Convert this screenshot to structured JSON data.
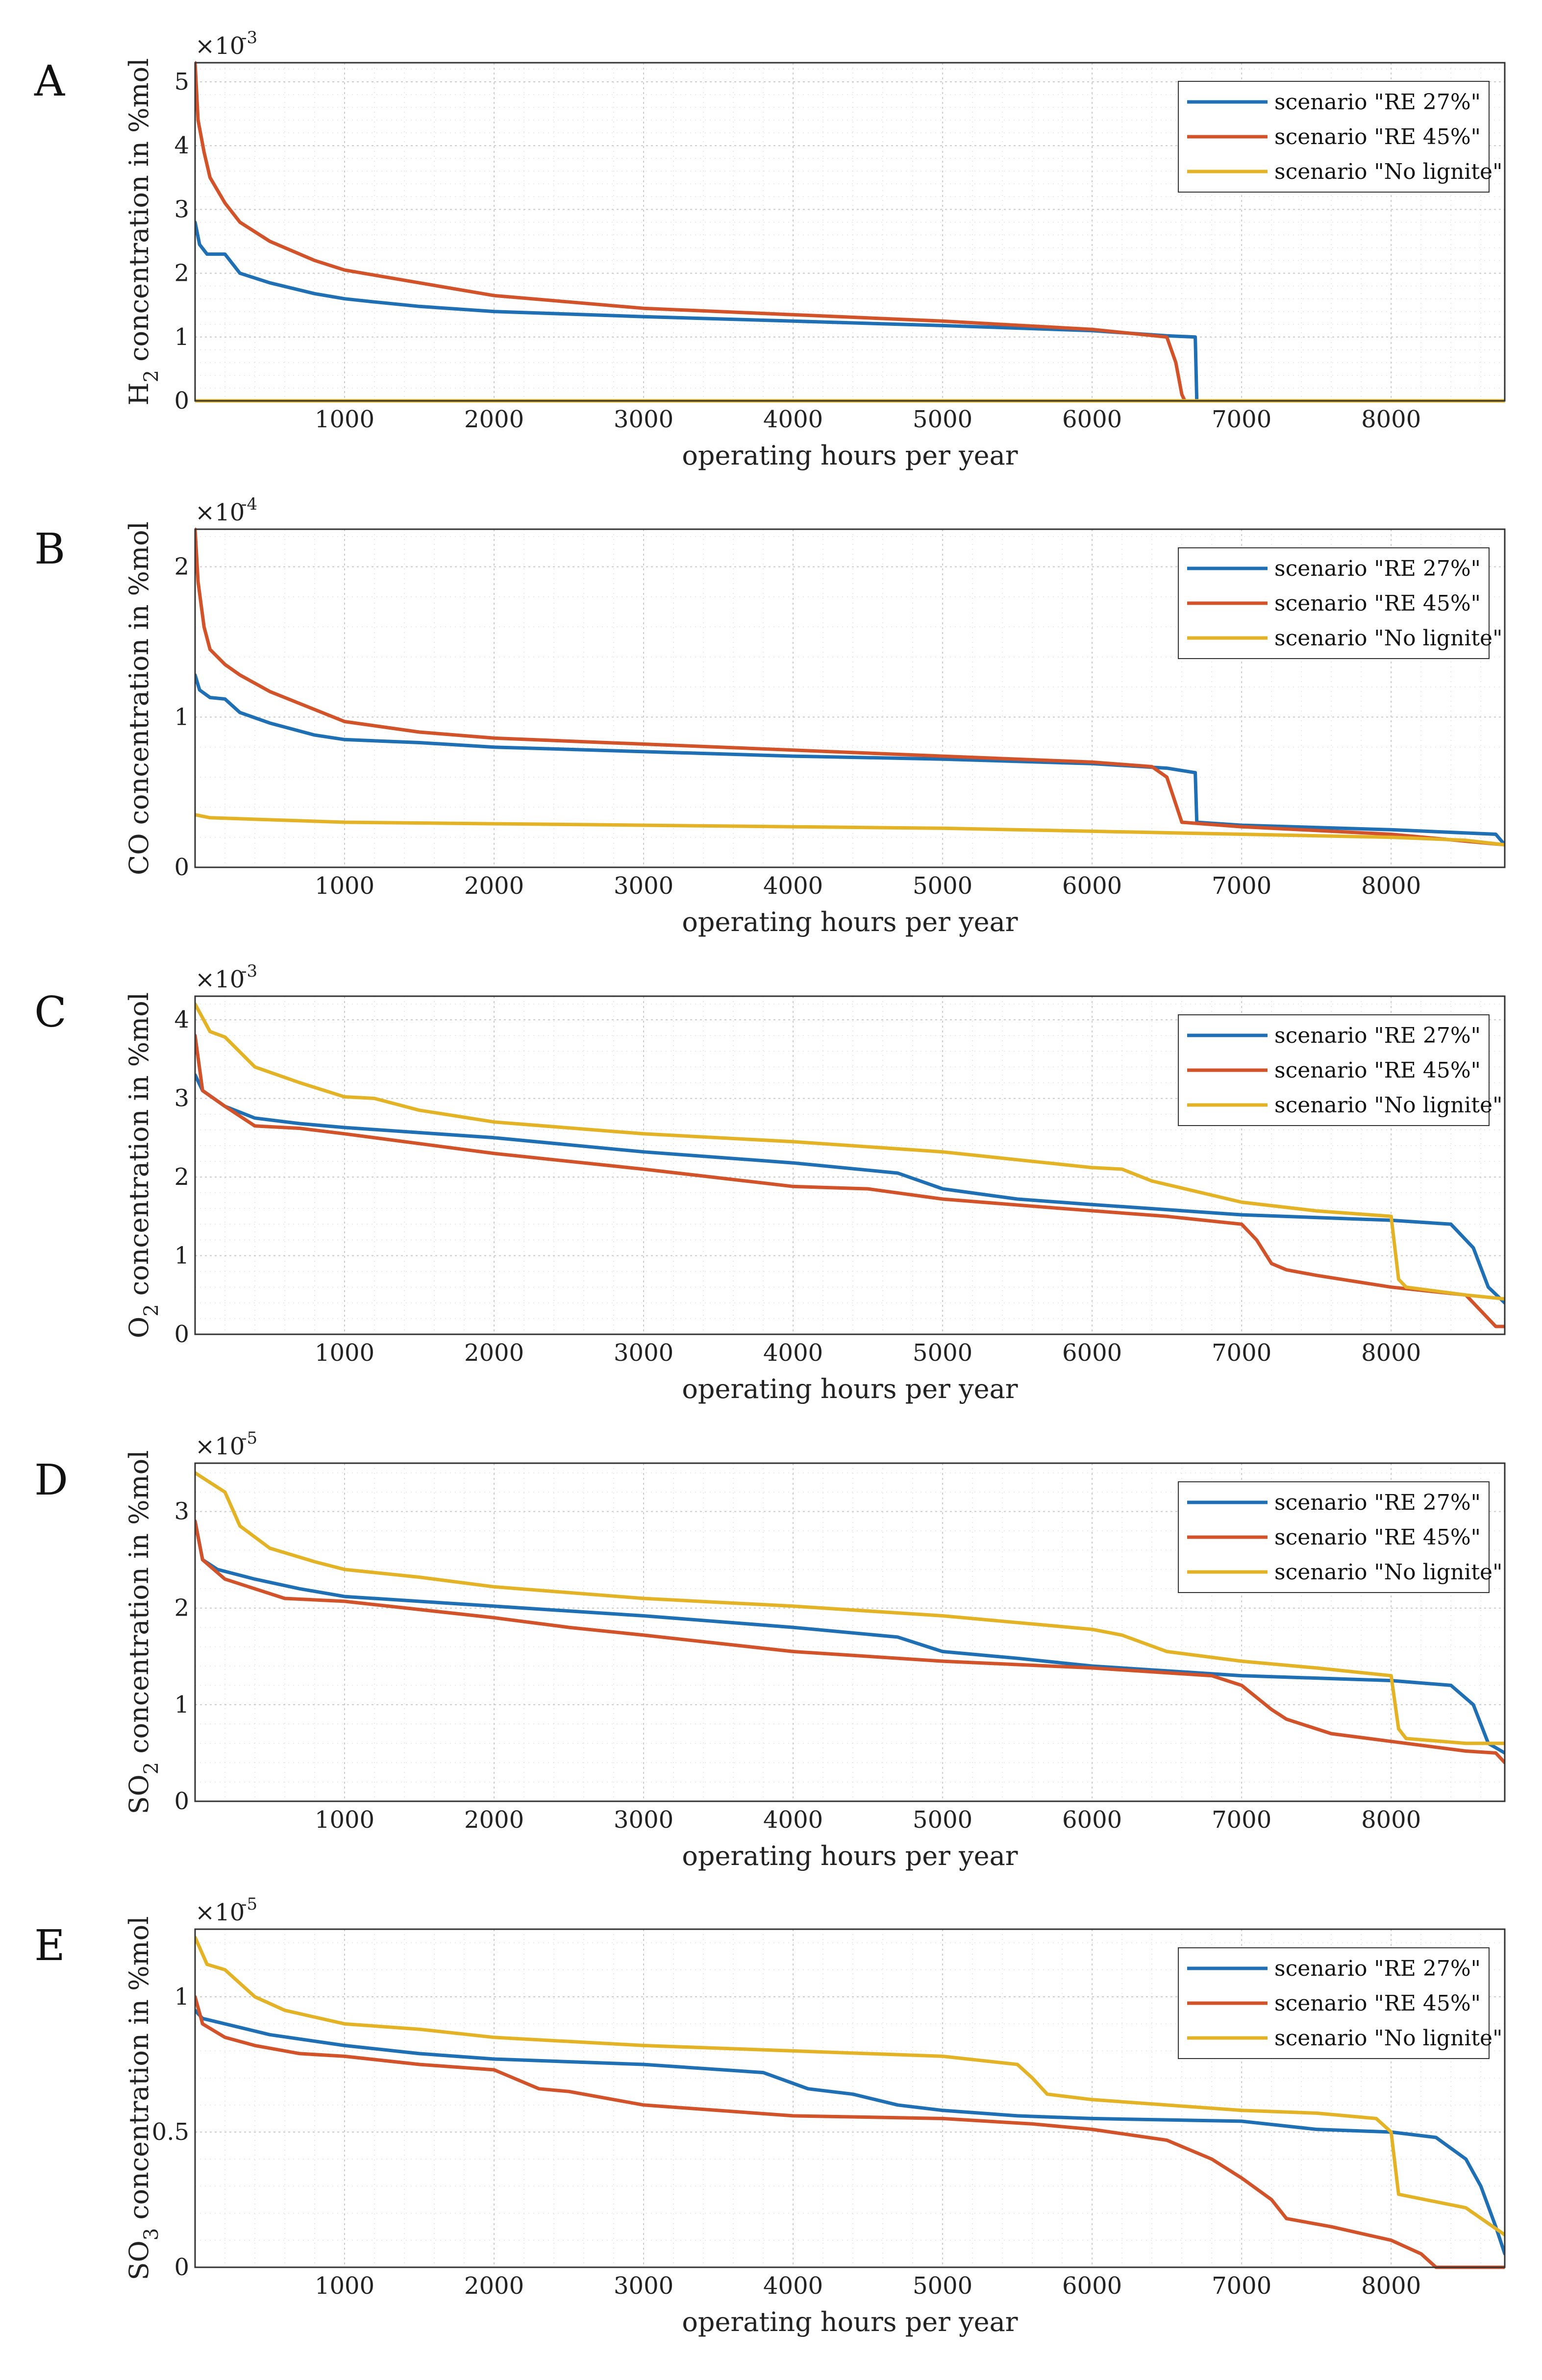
{
  "figure": {
    "x_axis_title": "operating hours per year",
    "legend_entries": [
      "scenario \"RE 27%\"",
      "scenario \"RE 45%\"",
      "scenario \"No lignite\""
    ],
    "colors": [
      "#1f6fb4",
      "#d2532a",
      "#e3b325"
    ]
  },
  "chart_data": [
    {
      "type": "line",
      "panel": "A",
      "ylabel_main": "H",
      "ylabel_sub": "2",
      "ylabel_rest": " concentration in %mol",
      "exponent_base": "×10",
      "exponent_power": "-3",
      "xlim": [
        0,
        8760
      ],
      "ylim": [
        0,
        5.3
      ],
      "xticks": [
        1000,
        2000,
        3000,
        4000,
        5000,
        6000,
        7000,
        8000
      ],
      "yticks": [
        0,
        1,
        2,
        3,
        4,
        5
      ],
      "ytick_labels": [
        "0",
        "1",
        "2",
        "3",
        "4",
        "5"
      ],
      "legend": "top-right",
      "series": [
        {
          "name": "scenario \"RE 27%\"",
          "x": [
            0,
            30,
            80,
            200,
            300,
            500,
            800,
            1000,
            1200,
            1500,
            2000,
            3000,
            4000,
            5000,
            6000,
            6500,
            6690,
            6700,
            8760
          ],
          "y": [
            2.8,
            2.45,
            2.3,
            2.3,
            2.0,
            1.85,
            1.68,
            1.6,
            1.55,
            1.48,
            1.4,
            1.32,
            1.25,
            1.18,
            1.1,
            1.02,
            1.0,
            0,
            0
          ]
        },
        {
          "name": "scenario \"RE 45%\"",
          "x": [
            0,
            20,
            60,
            100,
            200,
            300,
            500,
            800,
            1000,
            1500,
            2000,
            2500,
            3000,
            4000,
            5000,
            6000,
            6500,
            6560,
            6600,
            6620,
            8760
          ],
          "y": [
            5.3,
            4.4,
            3.9,
            3.5,
            3.1,
            2.8,
            2.5,
            2.2,
            2.05,
            1.85,
            1.65,
            1.55,
            1.45,
            1.35,
            1.25,
            1.12,
            1.0,
            0.6,
            0.1,
            0,
            0
          ]
        },
        {
          "name": "scenario \"No lignite\"",
          "x": [
            0,
            8760
          ],
          "y": [
            0,
            0
          ]
        }
      ]
    },
    {
      "type": "line",
      "panel": "B",
      "ylabel_main": "CO concentration in %mol",
      "ylabel_sub": "",
      "ylabel_rest": "",
      "exponent_base": "×10",
      "exponent_power": "-4",
      "xlim": [
        0,
        8760
      ],
      "ylim": [
        0,
        2.25
      ],
      "xticks": [
        1000,
        2000,
        3000,
        4000,
        5000,
        6000,
        7000,
        8000
      ],
      "yticks": [
        0,
        1,
        2
      ],
      "ytick_labels": [
        "0",
        "1",
        "2"
      ],
      "legend": "top-right",
      "series": [
        {
          "name": "scenario \"RE 27%\"",
          "x": [
            0,
            30,
            100,
            200,
            300,
            500,
            800,
            1000,
            1500,
            2000,
            3000,
            4000,
            5000,
            6000,
            6500,
            6690,
            6700,
            7000,
            8000,
            8700,
            8760
          ],
          "y": [
            1.28,
            1.18,
            1.13,
            1.12,
            1.03,
            0.96,
            0.88,
            0.85,
            0.83,
            0.8,
            0.77,
            0.74,
            0.72,
            0.69,
            0.66,
            0.63,
            0.3,
            0.28,
            0.25,
            0.22,
            0.15
          ]
        },
        {
          "name": "scenario \"RE 45%\"",
          "x": [
            0,
            20,
            60,
            100,
            200,
            300,
            500,
            800,
            1000,
            1500,
            2000,
            3000,
            4000,
            5000,
            6000,
            6400,
            6500,
            6550,
            6600,
            7000,
            8000,
            8760
          ],
          "y": [
            2.25,
            1.9,
            1.6,
            1.45,
            1.35,
            1.28,
            1.17,
            1.05,
            0.97,
            0.9,
            0.86,
            0.82,
            0.78,
            0.74,
            0.7,
            0.67,
            0.6,
            0.45,
            0.3,
            0.27,
            0.22,
            0.15
          ]
        },
        {
          "name": "scenario \"No lignite\"",
          "x": [
            0,
            100,
            1000,
            2000,
            3000,
            4000,
            5000,
            6000,
            7000,
            8000,
            8500,
            8760
          ],
          "y": [
            0.35,
            0.33,
            0.3,
            0.29,
            0.28,
            0.27,
            0.26,
            0.24,
            0.22,
            0.2,
            0.18,
            0.15
          ]
        }
      ]
    },
    {
      "type": "line",
      "panel": "C",
      "ylabel_main": "O",
      "ylabel_sub": "2",
      "ylabel_rest": " concentration in %mol",
      "exponent_base": "×10",
      "exponent_power": "-3",
      "xlim": [
        0,
        8760
      ],
      "ylim": [
        0,
        4.3
      ],
      "xticks": [
        1000,
        2000,
        3000,
        4000,
        5000,
        6000,
        7000,
        8000
      ],
      "yticks": [
        0,
        1,
        2,
        3,
        4
      ],
      "ytick_labels": [
        "0",
        "1",
        "2",
        "3",
        "4"
      ],
      "legend": "top-right",
      "series": [
        {
          "name": "scenario \"RE 27%\"",
          "x": [
            0,
            50,
            200,
            400,
            700,
            1000,
            2000,
            3000,
            4000,
            4700,
            5000,
            5500,
            6000,
            7000,
            8000,
            8400,
            8550,
            8650,
            8760
          ],
          "y": [
            3.3,
            3.1,
            2.9,
            2.75,
            2.68,
            2.63,
            2.5,
            2.32,
            2.18,
            2.05,
            1.85,
            1.72,
            1.65,
            1.52,
            1.45,
            1.4,
            1.1,
            0.6,
            0.4
          ]
        },
        {
          "name": "scenario \"RE 45%\"",
          "x": [
            0,
            50,
            200,
            400,
            700,
            1000,
            2000,
            3000,
            4000,
            4500,
            5000,
            5800,
            6500,
            7000,
            7100,
            7200,
            7300,
            7500,
            8000,
            8500,
            8700,
            8760
          ],
          "y": [
            3.8,
            3.1,
            2.9,
            2.65,
            2.62,
            2.55,
            2.3,
            2.1,
            1.88,
            1.85,
            1.72,
            1.6,
            1.5,
            1.4,
            1.2,
            0.9,
            0.82,
            0.75,
            0.6,
            0.5,
            0.1,
            0.1
          ]
        },
        {
          "name": "scenario \"No lignite\"",
          "x": [
            0,
            100,
            200,
            400,
            700,
            1000,
            1200,
            1500,
            2000,
            3000,
            4000,
            5000,
            5500,
            6000,
            6200,
            6400,
            7000,
            7500,
            8000,
            8050,
            8100,
            8500,
            8760
          ],
          "y": [
            4.2,
            3.85,
            3.78,
            3.4,
            3.2,
            3.02,
            3.0,
            2.85,
            2.7,
            2.55,
            2.45,
            2.32,
            2.22,
            2.12,
            2.1,
            1.95,
            1.68,
            1.57,
            1.5,
            0.7,
            0.6,
            0.5,
            0.45
          ]
        }
      ]
    },
    {
      "type": "line",
      "panel": "D",
      "ylabel_main": "SO",
      "ylabel_sub": "2",
      "ylabel_rest": " concentration in %mol",
      "exponent_base": "×10",
      "exponent_power": "-5",
      "xlim": [
        0,
        8760
      ],
      "ylim": [
        0,
        3.5
      ],
      "xticks": [
        1000,
        2000,
        3000,
        4000,
        5000,
        6000,
        7000,
        8000
      ],
      "yticks": [
        0,
        1,
        2,
        3
      ],
      "ytick_labels": [
        "0",
        "1",
        "2",
        "3"
      ],
      "legend": "top-right",
      "series": [
        {
          "name": "scenario \"RE 27%\"",
          "x": [
            0,
            50,
            150,
            400,
            700,
            1000,
            2000,
            3000,
            4000,
            4700,
            5000,
            5500,
            6000,
            7000,
            8000,
            8400,
            8550,
            8650,
            8760
          ],
          "y": [
            2.9,
            2.5,
            2.4,
            2.3,
            2.2,
            2.12,
            2.02,
            1.92,
            1.8,
            1.7,
            1.55,
            1.48,
            1.4,
            1.3,
            1.25,
            1.2,
            1.0,
            0.6,
            0.5
          ]
        },
        {
          "name": "scenario \"RE 45%\"",
          "x": [
            0,
            50,
            200,
            400,
            600,
            1000,
            2000,
            2500,
            3000,
            4000,
            5000,
            6000,
            6800,
            7000,
            7200,
            7300,
            7600,
            8000,
            8500,
            8700,
            8760
          ],
          "y": [
            2.9,
            2.5,
            2.3,
            2.2,
            2.1,
            2.07,
            1.9,
            1.8,
            1.72,
            1.55,
            1.45,
            1.38,
            1.3,
            1.2,
            0.95,
            0.85,
            0.7,
            0.62,
            0.52,
            0.5,
            0.4
          ]
        },
        {
          "name": "scenario \"No lignite\"",
          "x": [
            0,
            100,
            200,
            300,
            500,
            800,
            1000,
            1500,
            2000,
            3000,
            4000,
            5000,
            5500,
            6000,
            6200,
            6500,
            7000,
            7500,
            8000,
            8050,
            8100,
            8500,
            8760
          ],
          "y": [
            3.4,
            3.3,
            3.2,
            2.85,
            2.62,
            2.48,
            2.4,
            2.32,
            2.22,
            2.1,
            2.02,
            1.92,
            1.85,
            1.78,
            1.72,
            1.55,
            1.45,
            1.38,
            1.3,
            0.75,
            0.65,
            0.6,
            0.6
          ]
        }
      ]
    },
    {
      "type": "line",
      "panel": "E",
      "ylabel_main": "SO",
      "ylabel_sub": "3",
      "ylabel_rest": " concentration in %mol",
      "exponent_base": "×10",
      "exponent_power": "-5",
      "xlim": [
        0,
        8760
      ],
      "ylim": [
        0,
        1.25
      ],
      "xticks": [
        1000,
        2000,
        3000,
        4000,
        5000,
        6000,
        7000,
        8000
      ],
      "yticks": [
        0,
        0.5,
        1
      ],
      "ytick_labels": [
        "0",
        "0.5",
        "1"
      ],
      "legend": "top-right",
      "series": [
        {
          "name": "scenario \"RE 27%\"",
          "x": [
            0,
            50,
            200,
            500,
            1000,
            1500,
            2000,
            3000,
            3800,
            4100,
            4400,
            4700,
            5000,
            5500,
            6000,
            7000,
            7500,
            8000,
            8300,
            8500,
            8600,
            8700,
            8760
          ],
          "y": [
            0.95,
            0.92,
            0.9,
            0.86,
            0.82,
            0.79,
            0.77,
            0.75,
            0.72,
            0.66,
            0.64,
            0.6,
            0.58,
            0.56,
            0.55,
            0.54,
            0.51,
            0.5,
            0.48,
            0.4,
            0.3,
            0.15,
            0.05
          ]
        },
        {
          "name": "scenario \"RE 45%\"",
          "x": [
            0,
            50,
            200,
            400,
            700,
            1000,
            1500,
            2000,
            2300,
            2500,
            3000,
            4000,
            5000,
            5600,
            6000,
            6500,
            6800,
            7000,
            7200,
            7300,
            7600,
            8000,
            8200,
            8300,
            8760
          ],
          "y": [
            1.0,
            0.9,
            0.85,
            0.82,
            0.79,
            0.78,
            0.75,
            0.73,
            0.66,
            0.65,
            0.6,
            0.56,
            0.55,
            0.53,
            0.51,
            0.47,
            0.4,
            0.33,
            0.25,
            0.18,
            0.15,
            0.1,
            0.05,
            0,
            0
          ]
        },
        {
          "name": "scenario \"No lignite\"",
          "x": [
            0,
            80,
            200,
            400,
            600,
            1000,
            1500,
            2000,
            3000,
            4000,
            5000,
            5500,
            5600,
            5700,
            6000,
            7000,
            7500,
            7900,
            8000,
            8050,
            8500,
            8760
          ],
          "y": [
            1.22,
            1.12,
            1.1,
            1.0,
            0.95,
            0.9,
            0.88,
            0.85,
            0.82,
            0.8,
            0.78,
            0.75,
            0.7,
            0.64,
            0.62,
            0.58,
            0.57,
            0.55,
            0.5,
            0.27,
            0.22,
            0.12
          ]
        }
      ]
    }
  ]
}
